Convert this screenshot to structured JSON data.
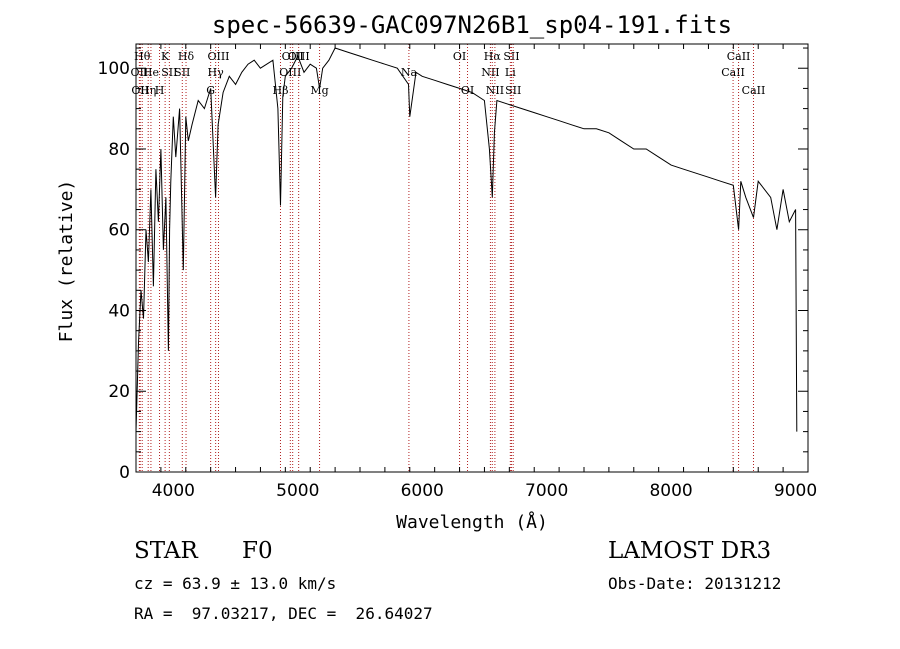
{
  "chart_data": {
    "type": "line",
    "title": "spec-56639-GAC097N26B1_sp04-191.fits",
    "xlabel": "Wavelength (Å)",
    "ylabel": "Flux (relative)",
    "xlim": [
      3700,
      9100
    ],
    "ylim": [
      0,
      106
    ],
    "x_ticks": [
      4000,
      5000,
      6000,
      7000,
      8000,
      9000
    ],
    "y_ticks": [
      0,
      20,
      40,
      60,
      80,
      100
    ],
    "line_color": "#000000",
    "marker_color": "#b22222",
    "series": [
      {
        "x": [
          3700,
          3720,
          3740,
          3760,
          3780,
          3800,
          3820,
          3840,
          3860,
          3880,
          3900,
          3920,
          3940,
          3960,
          3970,
          3980,
          4000,
          4020,
          4050,
          4080,
          4100,
          4120,
          4150,
          4200,
          4250,
          4300,
          4340,
          4360,
          4400,
          4450,
          4500,
          4550,
          4600,
          4650,
          4700,
          4750,
          4800,
          4840,
          4861,
          4880,
          4900,
          4950,
          5000,
          5050,
          5100,
          5150,
          5175,
          5200,
          5250,
          5300,
          5400,
          5500,
          5600,
          5700,
          5800,
          5890,
          5900,
          5950,
          6000,
          6100,
          6200,
          6300,
          6400,
          6500,
          6540,
          6563,
          6580,
          6600,
          6700,
          6800,
          6900,
          7000,
          7100,
          7200,
          7300,
          7400,
          7500,
          7600,
          7700,
          7800,
          7900,
          8000,
          8100,
          8200,
          8300,
          8400,
          8500,
          8542,
          8560,
          8600,
          8662,
          8700,
          8800,
          8850,
          8900,
          8950,
          9000,
          9010
        ],
        "y": [
          10,
          32,
          45,
          38,
          60,
          52,
          70,
          46,
          75,
          62,
          80,
          55,
          68,
          30,
          60,
          72,
          88,
          78,
          90,
          50,
          88,
          82,
          86,
          92,
          90,
          95,
          68,
          86,
          94,
          98,
          96,
          99,
          101,
          102,
          100,
          101,
          102,
          90,
          66,
          93,
          98,
          100,
          103,
          99,
          101,
          100,
          95,
          100,
          102,
          105,
          104,
          103,
          102,
          101,
          100,
          96,
          88,
          99,
          98,
          97,
          96,
          95,
          94,
          92,
          80,
          68,
          84,
          92,
          91,
          90,
          89,
          88,
          87,
          86,
          85,
          85,
          84,
          82,
          80,
          80,
          78,
          76,
          75,
          74,
          73,
          72,
          71,
          60,
          72,
          68,
          63,
          72,
          68,
          60,
          70,
          62,
          65,
          10
        ]
      }
    ],
    "line_markers": [
      {
        "wavelength": 3750,
        "label": "Hθ",
        "row": 0
      },
      {
        "wavelength": 3727,
        "label": "OII",
        "row": 1
      },
      {
        "wavelength": 3734,
        "label": "OII",
        "row": 2
      },
      {
        "wavelength": 3798,
        "label": "Hη",
        "row": 2
      },
      {
        "wavelength": 3820,
        "label": "He",
        "row": 1
      },
      {
        "wavelength": 3889,
        "label": "H",
        "row": 2
      },
      {
        "wavelength": 3934,
        "label": "K",
        "row": 0
      },
      {
        "wavelength": 3968,
        "label": "SII",
        "row": 1
      },
      {
        "wavelength": 4102,
        "label": "Hδ",
        "row": 0
      },
      {
        "wavelength": 4072,
        "label": "SII",
        "row": 1
      },
      {
        "wavelength": 4300,
        "label": "G",
        "row": 2
      },
      {
        "wavelength": 4340,
        "label": "Hγ",
        "row": 1
      },
      {
        "wavelength": 4363,
        "label": "OIII",
        "row": 0
      },
      {
        "wavelength": 4861,
        "label": "Hβ",
        "row": 2
      },
      {
        "wavelength": 4959,
        "label": "OIII",
        "row": 0
      },
      {
        "wavelength": 4940,
        "label": "OIII",
        "row": 1
      },
      {
        "wavelength": 5007,
        "label": "OIII",
        "row": 0
      },
      {
        "wavelength": 5175,
        "label": "Mg",
        "row": 2
      },
      {
        "wavelength": 5893,
        "label": "Na",
        "row": 1
      },
      {
        "wavelength": 6300,
        "label": "OI",
        "row": 0
      },
      {
        "wavelength": 6364,
        "label": "OI",
        "row": 2
      },
      {
        "wavelength": 6548,
        "label": "NII",
        "row": 1
      },
      {
        "wavelength": 6563,
        "label": "Hα",
        "row": 0
      },
      {
        "wavelength": 6584,
        "label": "NII",
        "row": 2
      },
      {
        "wavelength": 6708,
        "label": "Li",
        "row": 1
      },
      {
        "wavelength": 6717,
        "label": "SII",
        "row": 0
      },
      {
        "wavelength": 6731,
        "label": "SII",
        "row": 2
      },
      {
        "wavelength": 8498,
        "label": "CaII",
        "row": 1
      },
      {
        "wavelength": 8542,
        "label": "CaII",
        "row": 0
      },
      {
        "wavelength": 8662,
        "label": "CaII",
        "row": 2
      }
    ]
  },
  "info": {
    "object_class": "STAR",
    "subclass": "F0",
    "survey": "LAMOST DR3",
    "cz": "cz = 63.9 ± 13.0 km/s",
    "obs_date": "Obs-Date: 20131212",
    "coords": "RA =  97.03217, DEC =  26.64027"
  }
}
